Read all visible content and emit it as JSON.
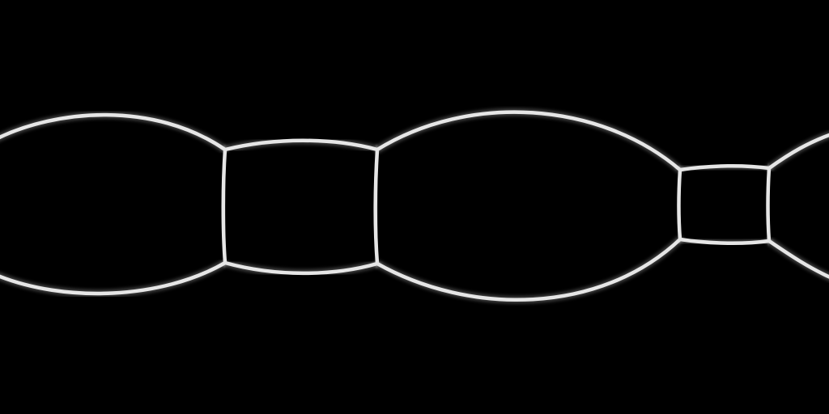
{
  "image": {
    "background_color": "#000000",
    "line_color": "#e6e6e6",
    "glow_color": "#bdbdbd",
    "style": "white curved outlines on black",
    "chamber_count": 5
  }
}
